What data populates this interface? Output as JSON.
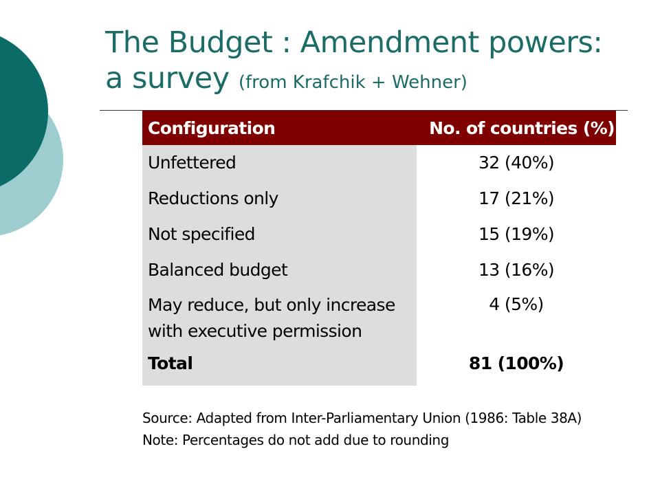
{
  "slide": {
    "title_line1": "The Budget : Amendment powers:",
    "title_line2": "a survey",
    "title_source": "(from Krafchik + Wehner)",
    "colors": {
      "title": "#1b6b66",
      "header_bg": "#7f0000",
      "label_column_bg": "#dddddd",
      "deco_dark": "#0b6c67",
      "deco_light": "#9ecdcf"
    }
  },
  "table": {
    "headers": [
      "Configuration",
      "No. of countries (%)"
    ],
    "rows": [
      {
        "configuration": "Unfettered",
        "countries": "32 (40%)"
      },
      {
        "configuration": "Reductions only",
        "countries": "17 (21%)"
      },
      {
        "configuration": "Not specified",
        "countries": "15 (19%)"
      },
      {
        "configuration": "Balanced budget",
        "countries": "13 (16%)"
      },
      {
        "configuration_line1": "May reduce, but only increase",
        "configuration_line2": "with executive permission",
        "countries": "4 (5%)"
      }
    ],
    "total": {
      "configuration": "Total",
      "countries": "81 (100%)"
    }
  },
  "notes": {
    "source": "Source: Adapted from Inter-Parliamentary Union (1986: Table 38A)",
    "note": "Note: Percentages do not add due to rounding"
  }
}
